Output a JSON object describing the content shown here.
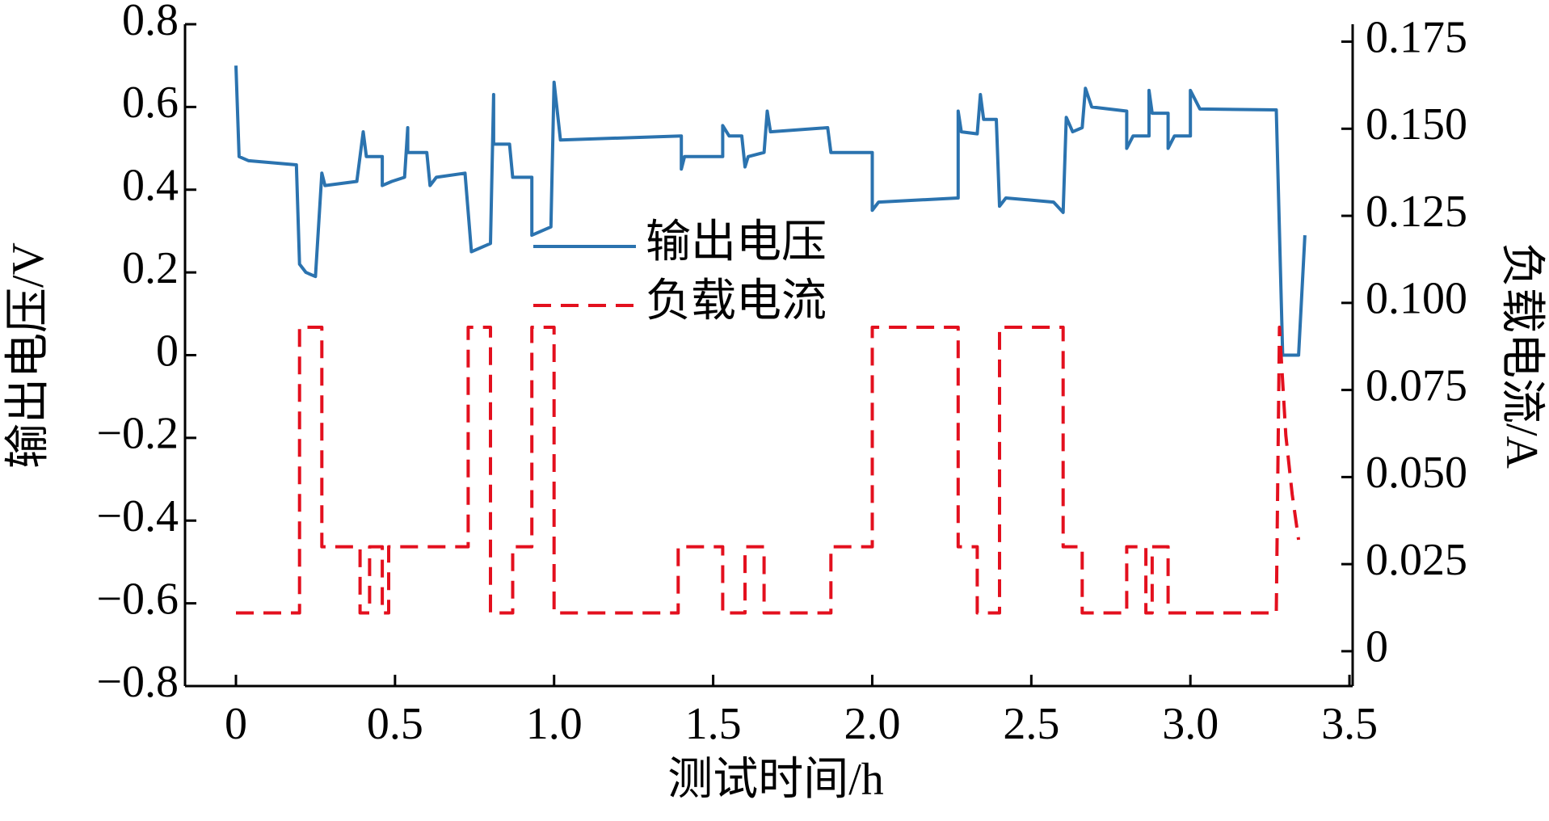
{
  "chart_data": {
    "type": "line",
    "xlabel": "测试时间/h",
    "ylabel": "输出电压/V",
    "y2label": "负载电流/A",
    "xlim": [
      -0.16,
      3.51
    ],
    "ylim": [
      -0.8,
      0.8
    ],
    "y2lim": [
      -0.01,
      0.18
    ],
    "xticks": [
      0,
      0.5,
      {
        "value": 1.0,
        "label": "1.0"
      },
      1.5,
      {
        "value": 2.0,
        "label": "2.0"
      },
      2.5,
      {
        "value": 3.0,
        "label": "3.0"
      },
      3.5
    ],
    "yticks": [
      {
        "value": -0.8,
        "label": "−0.8"
      },
      {
        "value": -0.6,
        "label": "−0.6"
      },
      {
        "value": -0.4,
        "label": "−0.4"
      },
      {
        "value": -0.2,
        "label": "−0.2"
      },
      0,
      0.2,
      0.4,
      0.6,
      0.8
    ],
    "y2ticks": [
      0,
      0.025,
      {
        "value": 0.05,
        "label": "0.050"
      },
      0.075,
      {
        "value": 0.1,
        "label": "0.100"
      },
      0.125,
      {
        "value": 0.15,
        "label": "0.150"
      },
      0.175
    ],
    "grid": false,
    "legend": "center",
    "series": [
      {
        "name": "输出电压",
        "color": "#2b73af",
        "dash": false,
        "x": [
          0,
          0.01,
          0.04,
          0.19,
          0.2,
          0.22,
          0.25,
          0.27,
          0.28,
          0.38,
          0.4,
          0.41,
          0.46,
          0.46,
          0.49,
          0.53,
          0.54,
          0.54,
          0.6,
          0.61,
          0.63,
          0.72,
          0.74,
          0.8,
          0.81,
          0.81,
          0.86,
          0.87,
          0.93,
          0.93,
          0.99,
          1.0,
          1.02,
          1.4,
          1.4,
          1.41,
          1.53,
          1.53,
          1.55,
          1.59,
          1.6,
          1.61,
          1.66,
          1.67,
          1.68,
          1.86,
          1.87,
          2.0,
          2.0,
          2.02,
          2.27,
          2.27,
          2.28,
          2.33,
          2.34,
          2.35,
          2.39,
          2.4,
          2.42,
          2.57,
          2.6,
          2.61,
          2.63,
          2.66,
          2.67,
          2.69,
          2.8,
          2.8,
          2.82,
          2.87,
          2.87,
          2.88,
          2.93,
          2.93,
          2.95,
          3.0,
          3.0,
          3.03,
          3.27,
          3.29,
          3.34,
          3.36
        ],
        "values": [
          0.7,
          0.48,
          0.47,
          0.46,
          0.22,
          0.2,
          0.19,
          0.44,
          0.41,
          0.42,
          0.54,
          0.48,
          0.48,
          0.41,
          0.42,
          0.43,
          0.55,
          0.49,
          0.49,
          0.41,
          0.43,
          0.44,
          0.25,
          0.27,
          0.63,
          0.51,
          0.51,
          0.43,
          0.43,
          0.29,
          0.31,
          0.66,
          0.52,
          0.53,
          0.45,
          0.48,
          0.48,
          0.555,
          0.53,
          0.53,
          0.455,
          0.48,
          0.49,
          0.59,
          0.54,
          0.55,
          0.49,
          0.49,
          0.35,
          0.37,
          0.38,
          0.59,
          0.54,
          0.535,
          0.63,
          0.57,
          0.57,
          0.36,
          0.38,
          0.37,
          0.345,
          0.575,
          0.54,
          0.55,
          0.645,
          0.6,
          0.59,
          0.5,
          0.53,
          0.53,
          0.64,
          0.585,
          0.585,
          0.5,
          0.53,
          0.53,
          0.64,
          0.595,
          0.593,
          0.0,
          0.0,
          0.29
        ]
      },
      {
        "name": "负载电流",
        "color": "#e3101e",
        "dash": true,
        "axis": "y2",
        "x": [
          0,
          0.2,
          0.2,
          0.27,
          0.27,
          0.39,
          0.39,
          0.42,
          0.42,
          0.46,
          0.46,
          0.48,
          0.48,
          0.6,
          0.6,
          0.73,
          0.73,
          0.8,
          0.8,
          0.87,
          0.87,
          0.93,
          0.93,
          1.0,
          1.0,
          1.39,
          1.39,
          1.53,
          1.53,
          1.6,
          1.6,
          1.66,
          1.66,
          1.87,
          1.87,
          2.0,
          2.0,
          2.27,
          2.27,
          2.33,
          2.33,
          2.4,
          2.4,
          2.6,
          2.6,
          2.66,
          2.66,
          2.8,
          2.8,
          2.86,
          2.86,
          2.88,
          2.88,
          2.93,
          2.93,
          3.0,
          3.0,
          3.27,
          3.28,
          3.3,
          3.32,
          3.34
        ],
        "values": [
          0.011,
          0.011,
          0.093,
          0.093,
          0.03,
          0.03,
          0.011,
          0.011,
          0.03,
          0.03,
          0.011,
          0.011,
          0.03,
          0.03,
          0.03,
          0.03,
          0.093,
          0.093,
          0.011,
          0.011,
          0.03,
          0.03,
          0.093,
          0.093,
          0.011,
          0.011,
          0.03,
          0.03,
          0.011,
          0.011,
          0.03,
          0.03,
          0.011,
          0.011,
          0.03,
          0.03,
          0.093,
          0.093,
          0.03,
          0.03,
          0.011,
          0.011,
          0.093,
          0.093,
          0.03,
          0.03,
          0.011,
          0.011,
          0.03,
          0.03,
          0.011,
          0.011,
          0.03,
          0.03,
          0.011,
          0.011,
          0.011,
          0.011,
          0.093,
          0.062,
          0.045,
          0.032
        ]
      }
    ]
  }
}
